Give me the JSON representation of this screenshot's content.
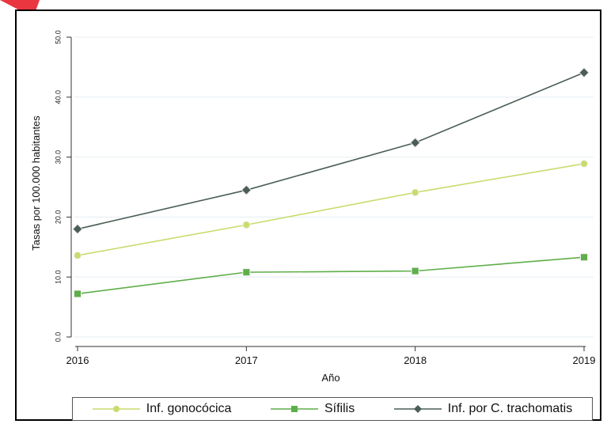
{
  "chart_data": {
    "type": "line",
    "title": "",
    "xlabel": "Año",
    "ylabel": "Tasas por 100.000 habitantes",
    "x": [
      2016,
      2017,
      2018,
      2019
    ],
    "xlim": [
      2016,
      2019
    ],
    "ylim": [
      0,
      50
    ],
    "yticks": [
      "0.0",
      "10.0",
      "20.0",
      "30.0",
      "40.0",
      "50.0"
    ],
    "xticks": [
      "2016",
      "2017",
      "2018",
      "2019"
    ],
    "grid": true,
    "legend_position": "bottom",
    "series": [
      {
        "name": "Inf. gonocócica",
        "marker": "circle",
        "color": "#c8dc6e",
        "values": [
          13.6,
          18.7,
          24.1,
          28.9
        ]
      },
      {
        "name": "Sífilis",
        "marker": "square",
        "color": "#5eae49",
        "values": [
          7.2,
          10.8,
          11.0,
          13.3
        ]
      },
      {
        "name": "Inf. por C. trachomatis",
        "marker": "diamond",
        "color": "#4a5e55",
        "values": [
          18.0,
          24.5,
          32.4,
          44.1
        ]
      }
    ]
  }
}
